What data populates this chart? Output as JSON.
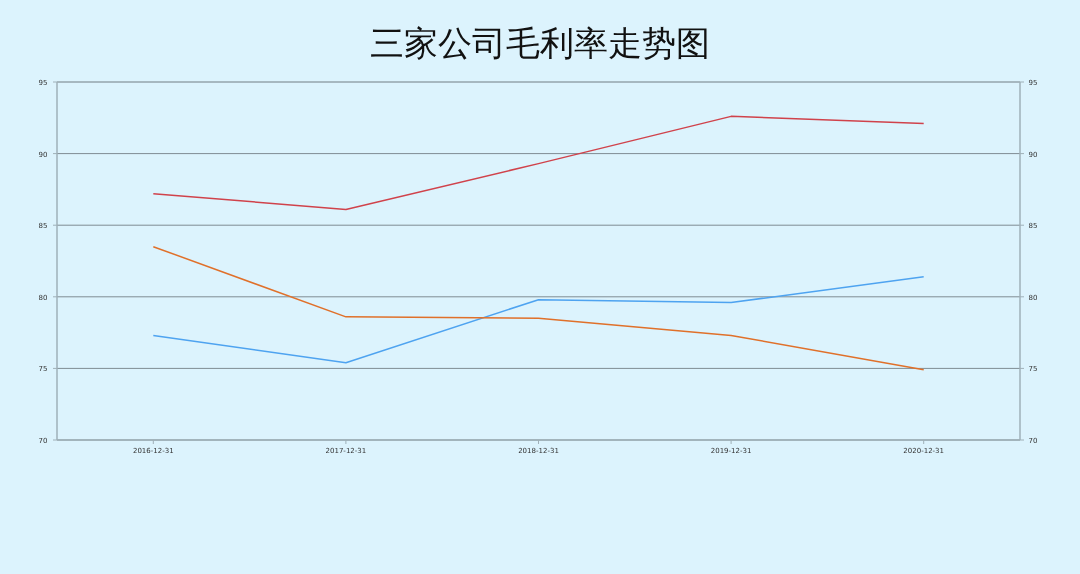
{
  "chart_data": {
    "type": "line",
    "title": "三家公司毛利率走势图",
    "categories": [
      "2016-12-31",
      "2017-12-31",
      "2018-12-31",
      "2019-12-31",
      "2020-12-31"
    ],
    "series": [
      {
        "color": "#d0424b",
        "values": [
          87.2,
          86.1,
          89.3,
          92.6,
          92.1
        ]
      },
      {
        "color": "#4ea3f0",
        "values": [
          77.3,
          75.4,
          79.8,
          79.6,
          81.4
        ]
      },
      {
        "color": "#e0702a",
        "values": [
          83.5,
          78.6,
          78.5,
          77.3,
          74.9
        ]
      }
    ],
    "ylim": [
      70,
      95
    ],
    "yticks": [
      70,
      75,
      80,
      85,
      90,
      95
    ],
    "y2lim": [
      70,
      95
    ],
    "y2ticks": [
      70,
      75,
      80,
      85,
      90,
      95
    ],
    "grid": "y"
  }
}
